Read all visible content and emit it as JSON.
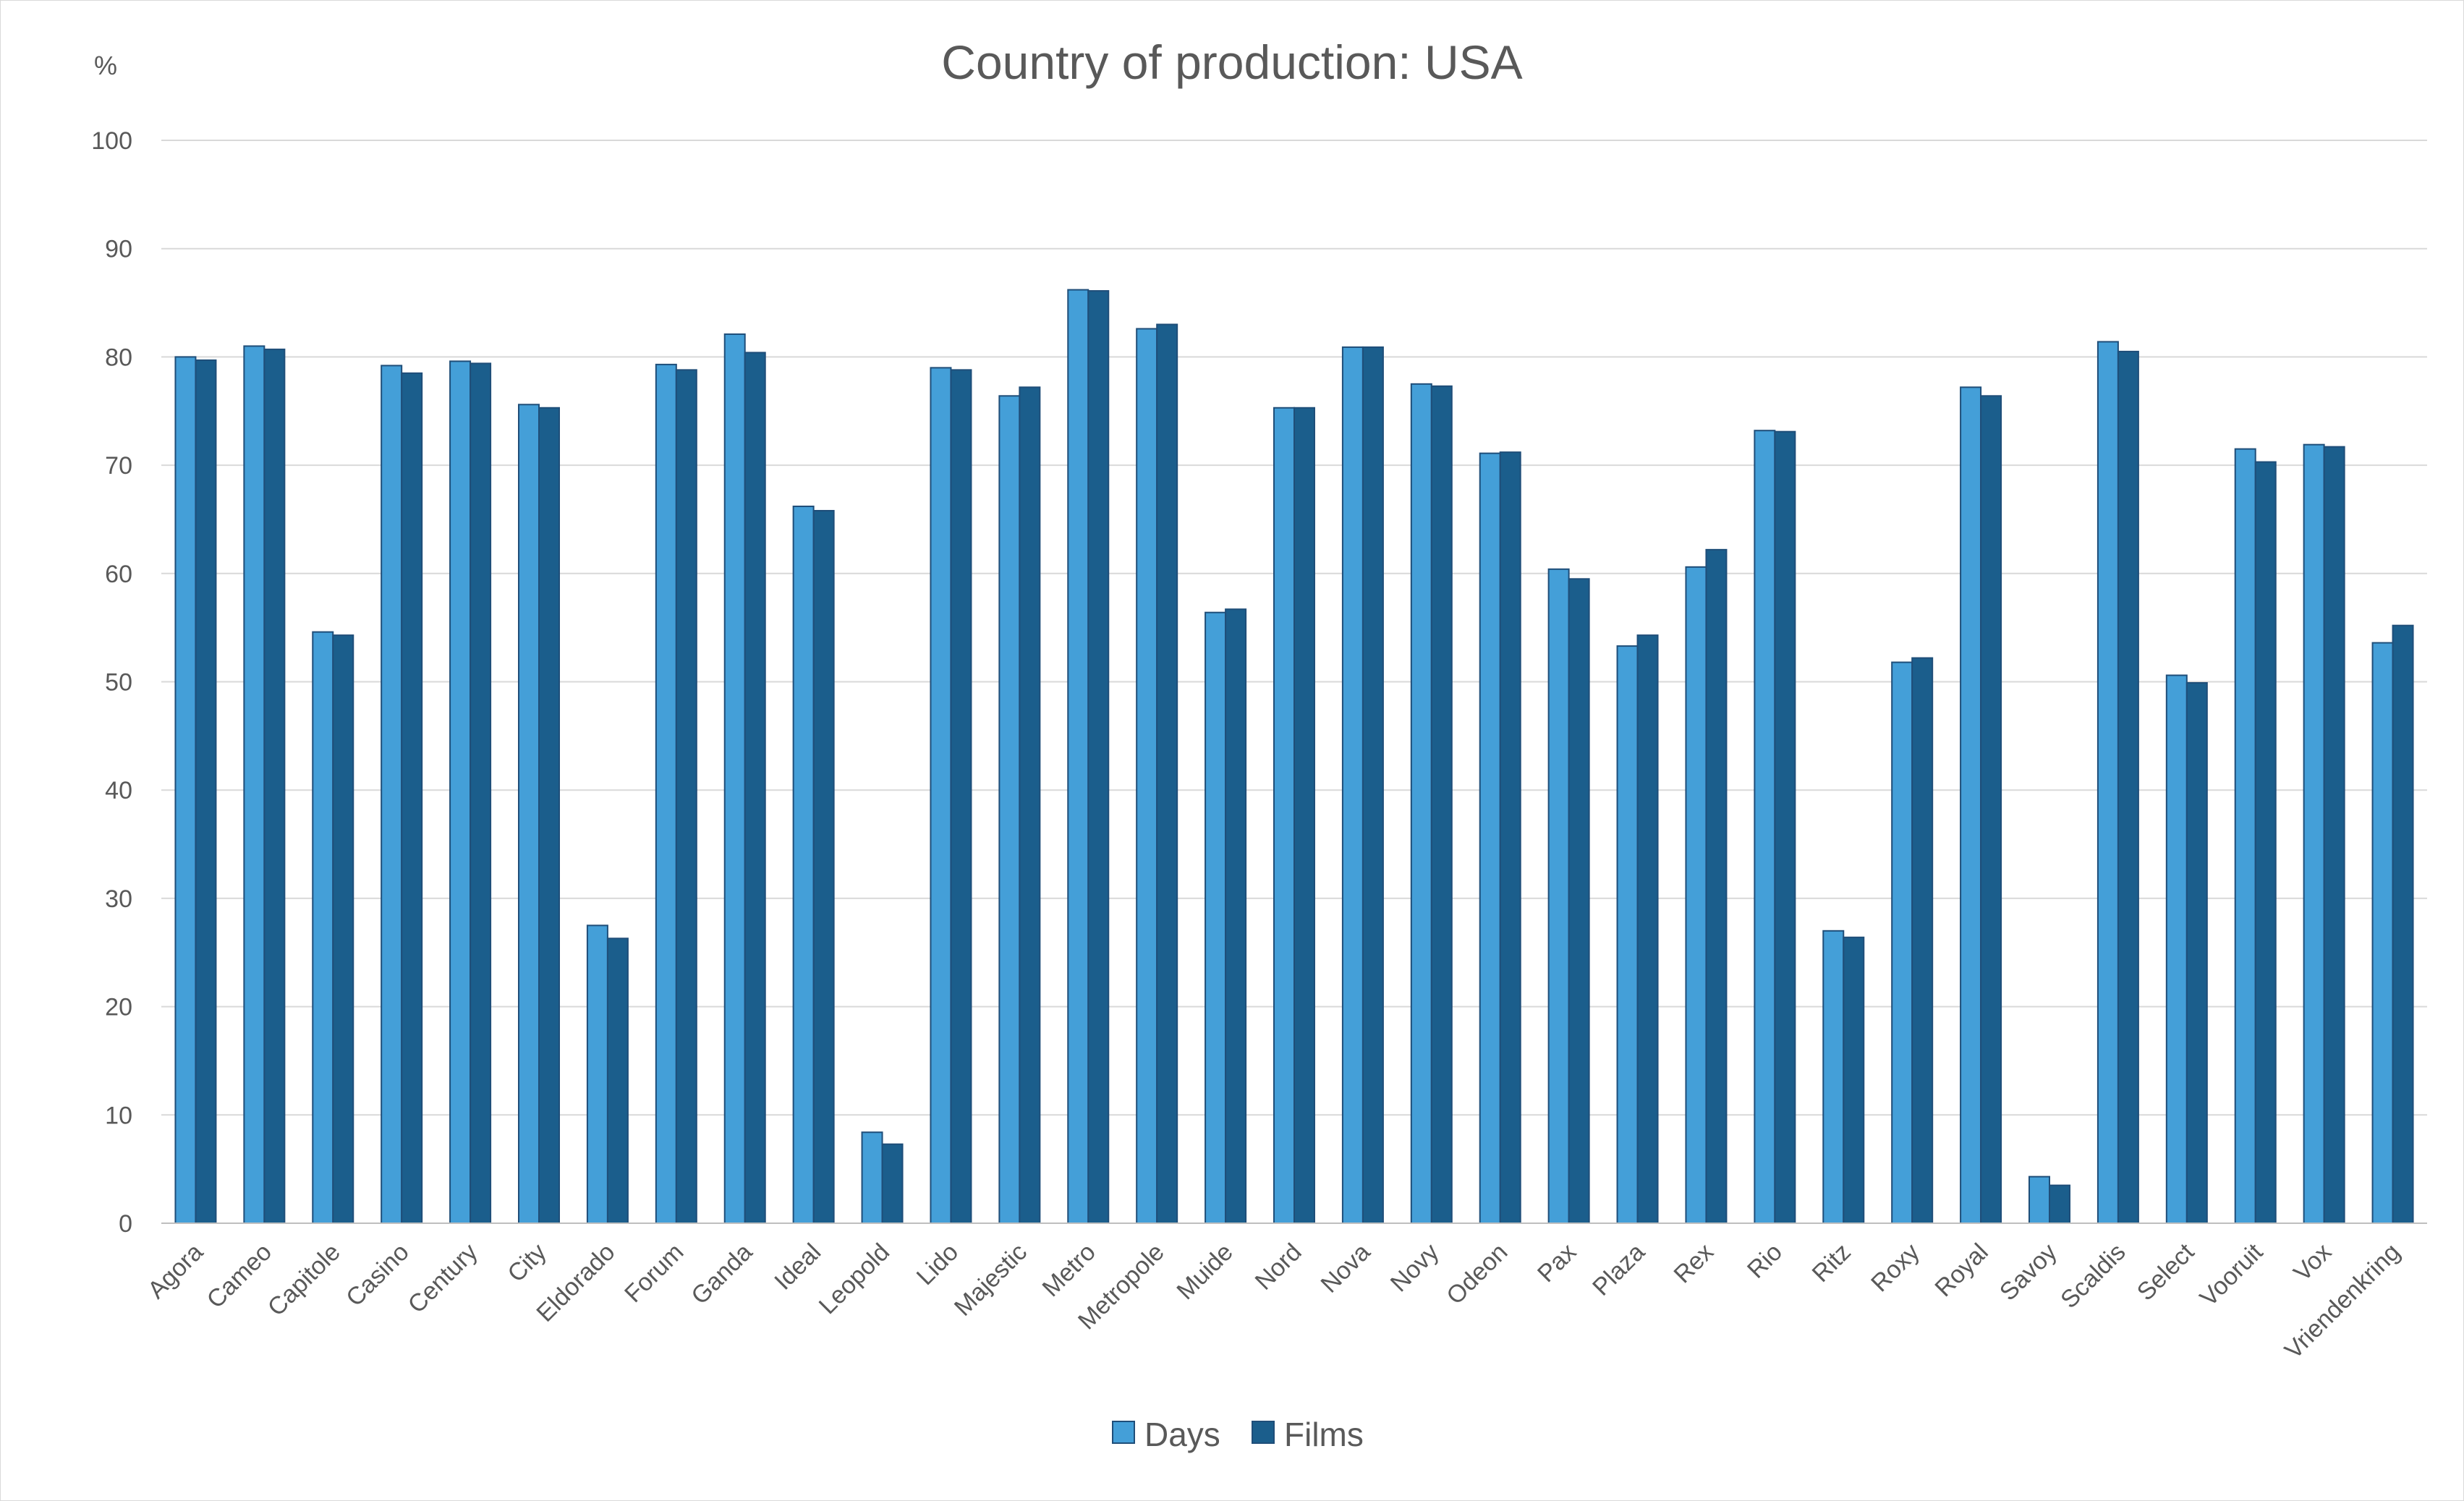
{
  "chart_data": {
    "type": "bar",
    "title": "Country of production: USA",
    "ylabel": "%",
    "xlabel": "",
    "ylim": [
      0,
      100
    ],
    "yticks": [
      0,
      10,
      20,
      30,
      40,
      50,
      60,
      70,
      80,
      90,
      100
    ],
    "grid": true,
    "legend": "bottom",
    "categories": [
      "Agora",
      "Cameo",
      "Capitole",
      "Casino",
      "Century",
      "City",
      "Eldorado",
      "Forum",
      "Ganda",
      "Ideal",
      "Leopold",
      "Lido",
      "Majestic",
      "Metro",
      "Metropole",
      "Muide",
      "Nord",
      "Nova",
      "Novy",
      "Odeon",
      "Pax",
      "Plaza",
      "Rex",
      "Rio",
      "Ritz",
      "Roxy",
      "Royal",
      "Savoy",
      "Scaldis",
      "Select",
      "Vooruit",
      "Vox",
      "Vriendenkring"
    ],
    "series": [
      {
        "name": "Days",
        "color": "#449fd8",
        "values": [
          80.0,
          81.0,
          54.6,
          79.2,
          79.6,
          75.6,
          27.5,
          79.3,
          82.1,
          66.2,
          8.4,
          79.0,
          76.4,
          86.2,
          82.6,
          56.4,
          75.3,
          80.9,
          77.5,
          71.1,
          60.4,
          53.3,
          60.6,
          73.2,
          27.0,
          51.8,
          77.2,
          4.3,
          81.4,
          50.6,
          71.5,
          71.9,
          53.6
        ]
      },
      {
        "name": "Films",
        "color": "#1b5e8c",
        "values": [
          79.7,
          80.7,
          54.3,
          78.5,
          79.4,
          75.3,
          26.3,
          78.8,
          80.4,
          65.8,
          7.3,
          78.8,
          77.2,
          86.1,
          83.0,
          56.7,
          75.3,
          80.9,
          77.3,
          71.2,
          59.5,
          54.3,
          62.2,
          73.1,
          26.4,
          52.2,
          76.4,
          3.5,
          80.5,
          49.9,
          70.3,
          71.7,
          55.2
        ]
      }
    ]
  }
}
